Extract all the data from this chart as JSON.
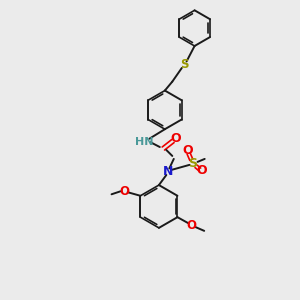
{
  "bg_color": "#ebebeb",
  "bond_color": "#1a1a1a",
  "s_color": "#999900",
  "n_color": "#1a1acc",
  "o_color": "#ee0000",
  "hn_color": "#4a9999",
  "figsize": [
    3.0,
    3.0
  ],
  "dpi": 100,
  "xlim": [
    0,
    10
  ],
  "ylim": [
    0,
    10
  ]
}
